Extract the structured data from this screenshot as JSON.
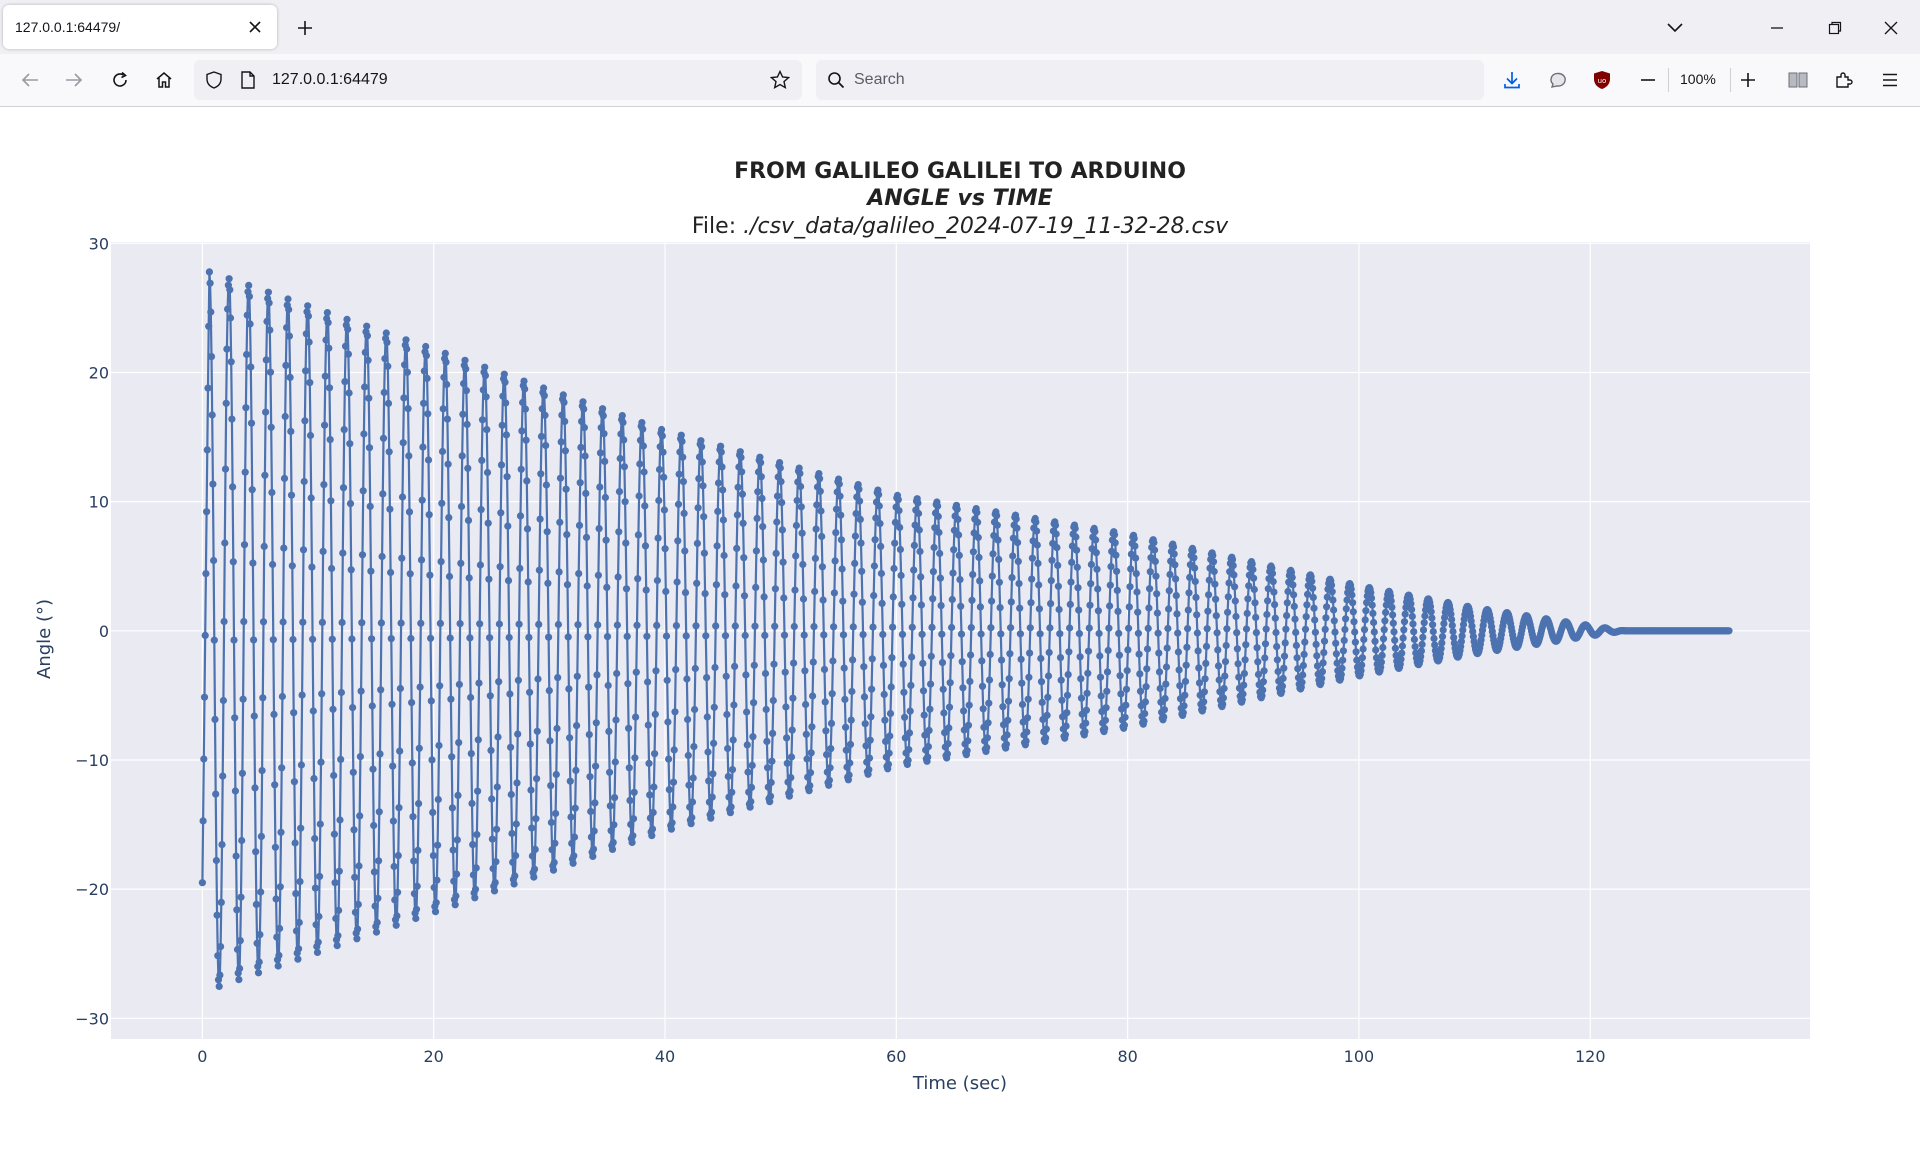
{
  "browser": {
    "tab_title": "127.0.0.1:64479/",
    "url": "127.0.0.1:64479",
    "search_placeholder": "Search",
    "zoom": "100%"
  },
  "chart_data": {
    "type": "line",
    "title": "FROM GALILEO GALILEI TO ARDUINO",
    "subtitle": "ANGLE vs TIME",
    "file_label": "File: ",
    "file_path": "./csv_data/galileo_2024-07-19_11-32-28.csv",
    "xlabel": "Time (sec)",
    "ylabel": "Angle (°)",
    "xlim": [
      -7.9,
      139
    ],
    "ylim": [
      -31.6,
      30.1
    ],
    "xticks": [
      0,
      20,
      40,
      60,
      80,
      100,
      120
    ],
    "yticks": [
      -30,
      -20,
      -10,
      0,
      10,
      20,
      30
    ],
    "xtick_labels": [
      "0",
      "20",
      "40",
      "60",
      "80",
      "100",
      "120"
    ],
    "ytick_labels": [
      "−30",
      "−20",
      "−10",
      "0",
      "10",
      "20",
      "30"
    ],
    "grid": true,
    "line_color": "#4c72b0",
    "plot_bgcolor": "#eaeaf2",
    "series": [
      {
        "mode": "lines+markers",
        "start_time": 0,
        "end_time": 132,
        "initial_angle": -19.5,
        "peak_amplitude": 27.8,
        "period_sec": 1.7,
        "amplitude_envelope": [
          [
            0.6,
            27.8
          ],
          [
            20,
            21.8
          ],
          [
            40,
            15.5
          ],
          [
            60,
            10.5
          ],
          [
            80,
            7.5
          ],
          [
            100,
            3.5
          ],
          [
            110,
            1.8
          ],
          [
            120,
            0.4
          ],
          [
            123,
            0
          ]
        ]
      }
    ]
  }
}
